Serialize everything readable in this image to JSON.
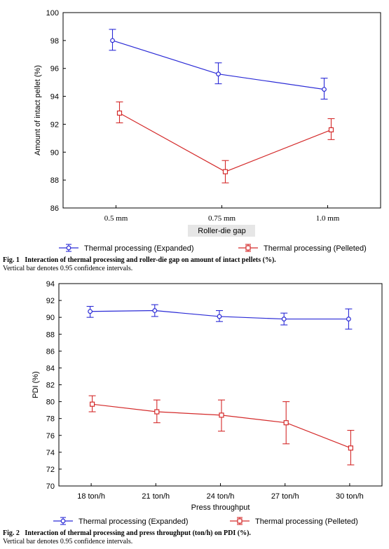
{
  "chart_data": [
    {
      "type": "line",
      "title": "",
      "xlabel": "Roller-die gap",
      "ylabel": "Amount of intact pellet (%)",
      "categories": [
        "0.5 mm",
        "0.75 mm",
        "1.0 mm"
      ],
      "ylim": [
        86,
        100
      ],
      "yticks": [
        86,
        88,
        90,
        92,
        94,
        96,
        98,
        100
      ],
      "grid": false,
      "legend_position": "bottom",
      "series": [
        {
          "name": "Thermal processing (Expanded)",
          "color": "#2a2ad6",
          "marker": "circle",
          "values": [
            98.0,
            95.6,
            94.5
          ],
          "ci_low": [
            97.3,
            94.9,
            93.8
          ],
          "ci_high": [
            98.8,
            96.4,
            95.3
          ]
        },
        {
          "name": "Thermal processing (Pelleted)",
          "color": "#d42a2a",
          "marker": "square",
          "values": [
            92.8,
            88.6,
            91.6
          ],
          "ci_low": [
            92.1,
            87.8,
            90.9
          ],
          "ci_high": [
            93.6,
            89.4,
            92.4
          ]
        }
      ]
    },
    {
      "type": "line",
      "title": "",
      "xlabel": "Press throughput",
      "ylabel": "PDI (%)",
      "categories": [
        "18 ton/h",
        "21 ton/h",
        "24 ton/h",
        "27 ton/h",
        "30 ton/h"
      ],
      "ylim": [
        70,
        94
      ],
      "yticks": [
        70,
        72,
        74,
        76,
        78,
        80,
        82,
        84,
        86,
        88,
        90,
        92,
        94
      ],
      "grid": false,
      "legend_position": "bottom",
      "series": [
        {
          "name": "Thermal processing (Expanded)",
          "color": "#2a2ad6",
          "marker": "circle",
          "values": [
            90.7,
            90.8,
            90.1,
            89.8,
            89.8
          ],
          "ci_low": [
            90.0,
            90.1,
            89.5,
            89.1,
            88.6
          ],
          "ci_high": [
            91.3,
            91.5,
            90.8,
            90.5,
            91.0
          ]
        },
        {
          "name": "Thermal processing (Pelleted)",
          "color": "#d42a2a",
          "marker": "square",
          "values": [
            79.7,
            78.8,
            78.4,
            77.5,
            74.5
          ],
          "ci_low": [
            78.8,
            77.5,
            76.5,
            75.0,
            72.5
          ],
          "ci_high": [
            80.7,
            80.2,
            80.2,
            80.0,
            76.6
          ]
        }
      ]
    }
  ],
  "captions": [
    {
      "label": "Fig. 1",
      "title": "Interaction of thermal processing and roller-die gap on amount of intact pellets (%).",
      "note": "Vertical bar denotes 0.95 confidence intervals."
    },
    {
      "label": "Fig. 2",
      "title": "Interaction of thermal processing and press throughput (ton/h) on PDI (%).",
      "note": "Vertical bar denotes 0.95 confidence intervals."
    }
  ]
}
